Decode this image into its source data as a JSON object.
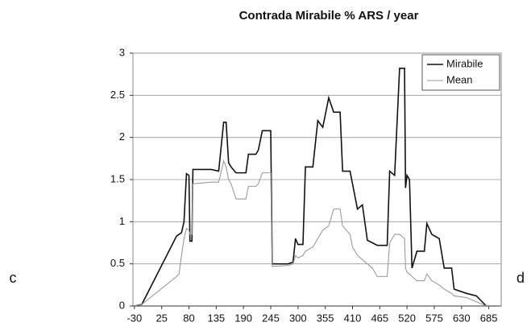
{
  "chart_data": {
    "type": "line",
    "title": "Contrada Mirabile % ARS / year",
    "annotations": [
      "c",
      "d"
    ],
    "x": [
      -30,
      -15,
      55,
      60,
      65,
      70,
      75,
      80,
      82,
      86,
      88,
      125,
      140,
      150,
      155,
      160,
      165,
      175,
      195,
      200,
      215,
      220,
      228,
      245,
      248,
      280,
      290,
      295,
      300,
      310,
      315,
      330,
      340,
      350,
      362,
      372,
      385,
      390,
      405,
      410,
      420,
      430,
      440,
      450,
      460,
      480,
      485,
      495,
      505,
      515,
      517,
      520,
      525,
      530,
      540,
      555,
      560,
      570,
      585,
      595,
      610,
      615,
      640,
      660,
      680,
      700
    ],
    "series": [
      {
        "name": "Mirabile",
        "color": "#111111",
        "values": [
          0,
          0.02,
          0.83,
          0.85,
          0.87,
          1.0,
          1.57,
          1.55,
          0.77,
          0.77,
          1.62,
          1.62,
          1.6,
          2.18,
          2.18,
          1.7,
          1.65,
          1.58,
          1.58,
          1.8,
          1.8,
          1.85,
          2.08,
          2.08,
          0.5,
          0.5,
          0.52,
          0.8,
          0.73,
          0.73,
          1.65,
          1.65,
          2.2,
          2.12,
          2.47,
          2.3,
          2.3,
          1.6,
          1.6,
          1.45,
          1.15,
          1.2,
          0.78,
          0.75,
          0.72,
          0.72,
          1.6,
          1.55,
          2.82,
          2.82,
          1.4,
          1.55,
          1.5,
          0.45,
          0.65,
          0.65,
          0.98,
          0.85,
          0.8,
          0.45,
          0.45,
          0.2,
          0.15,
          0.12,
          0,
          0
        ]
      },
      {
        "name": "Mean",
        "color": "#999999",
        "values": [
          0,
          0.02,
          0.35,
          0.38,
          0.6,
          0.8,
          0.92,
          0.9,
          0.85,
          0.85,
          1.45,
          1.47,
          1.47,
          1.72,
          1.65,
          1.5,
          1.45,
          1.27,
          1.27,
          1.42,
          1.42,
          1.45,
          1.58,
          1.58,
          0.47,
          0.48,
          0.5,
          0.6,
          0.57,
          0.6,
          0.65,
          0.7,
          0.8,
          0.9,
          0.95,
          1.15,
          1.15,
          0.95,
          0.85,
          0.7,
          0.6,
          0.55,
          0.5,
          0.45,
          0.35,
          0.35,
          0.75,
          0.85,
          0.85,
          0.8,
          0.45,
          0.4,
          0.38,
          0.35,
          0.3,
          0.3,
          0.38,
          0.3,
          0.25,
          0.2,
          0.15,
          0.12,
          0.1,
          0.05,
          0,
          0
        ]
      }
    ],
    "xlim": [
      -33,
      710
    ],
    "xticks": [
      -30,
      25,
      80,
      135,
      190,
      245,
      300,
      355,
      410,
      465,
      520,
      575,
      630,
      685
    ],
    "ylim": [
      0,
      3
    ],
    "yticks": [
      0,
      0.5,
      1,
      1.5,
      2,
      2.5,
      3
    ],
    "grid": true,
    "legend": "top-right"
  }
}
